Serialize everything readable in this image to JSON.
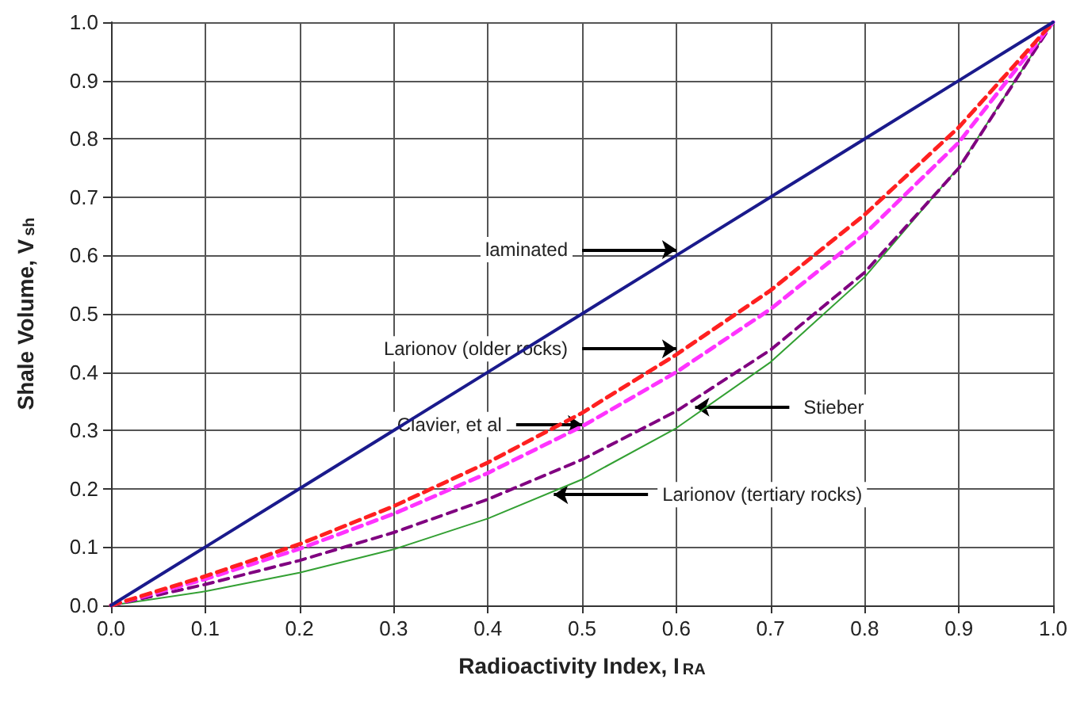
{
  "chart_data": {
    "type": "line",
    "xlabel": "Radioactivity Index, I$_{RA}$",
    "ylabel": "Shale Volume, V$_{sh}$",
    "x": [
      0,
      0.1,
      0.2,
      0.3,
      0.4,
      0.5,
      0.6,
      0.7,
      0.8,
      0.9,
      1.0
    ],
    "series": [
      {
        "color": "#1a1a8c",
        "line_style": "solid",
        "values": [
          0,
          0.1,
          0.2,
          0.3,
          0.4,
          0.5,
          0.6,
          0.7,
          0.8,
          0.9,
          1.0
        ]
      },
      {
        "color": "#ff2020",
        "line_style": "dashed",
        "values": [
          0,
          0.05,
          0.105,
          0.17,
          0.245,
          0.33,
          0.43,
          0.54,
          0.67,
          0.82,
          1.0
        ]
      },
      {
        "color": "#ff33ff",
        "line_style": "dashed",
        "values": [
          0,
          0.045,
          0.097,
          0.157,
          0.227,
          0.307,
          0.4,
          0.508,
          0.637,
          0.794,
          1.0
        ]
      },
      {
        "color": "#800080",
        "line_style": "dashed",
        "values": [
          0,
          0.036,
          0.077,
          0.125,
          0.182,
          0.25,
          0.333,
          0.438,
          0.571,
          0.75,
          1.0
        ]
      },
      {
        "color": "#33a033",
        "line_style": "solid",
        "values": [
          0,
          0.024,
          0.056,
          0.096,
          0.149,
          0.216,
          0.304,
          0.417,
          0.563,
          0.752,
          1.0
        ]
      }
    ],
    "xlim": [
      0,
      1
    ],
    "ylim": [
      0,
      1
    ],
    "xticks": [
      {
        "value": 0,
        "label": "0.0"
      },
      0.1,
      0.2,
      0.3,
      0.4,
      0.5,
      0.6,
      0.7,
      0.8,
      0.9,
      {
        "value": 1,
        "label": "1.0"
      }
    ],
    "yticks": [
      {
        "value": 0,
        "label": "0.0"
      },
      0.1,
      0.2,
      0.3,
      0.4,
      0.5,
      0.6,
      0.7,
      0.8,
      0.9,
      {
        "value": 1,
        "label": "1.0"
      }
    ],
    "grid": true,
    "marker": "none",
    "annotations": [
      {
        "text": "laminated",
        "x": 0.6,
        "y": 0.61
      },
      {
        "text": "Larionov (older rocks)",
        "x": 0.6,
        "y": 0.44
      },
      {
        "text": "Clavier, et al",
        "x": 0.5,
        "y": 0.31
      },
      {
        "text": "Stieber",
        "x": 0.62,
        "y": 0.34
      },
      {
        "text": "Larionov (tertiary rocks)",
        "x": 0.47,
        "y": 0.19
      }
    ]
  }
}
